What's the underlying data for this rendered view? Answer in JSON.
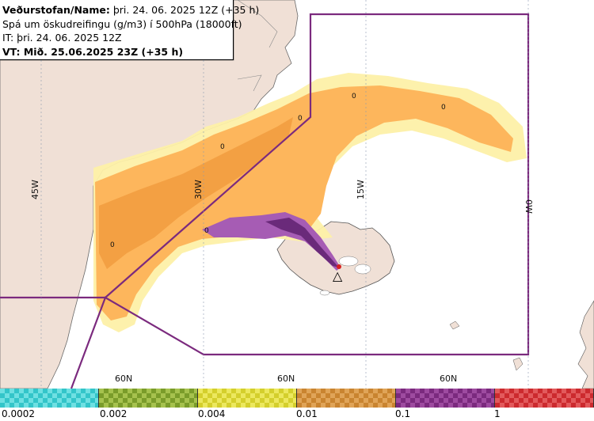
{
  "info": {
    "line1_bold": "Veðurstofan/Name:",
    "line1_rest": " þri. 24. 06. 2025 12Z (+35 h)",
    "line2": "Spá um öskudreifingu (g/m3) í 500hPa (18000ft)",
    "line3": "IT: þri. 24. 06. 2025 12Z",
    "line4": "VT: Mið. 25.06.2025 23Z (+35 h)"
  },
  "map": {
    "longitude_labels": [
      "45W",
      "30W",
      "15W",
      "0W"
    ],
    "latitude_labels": [
      "60N",
      "60N",
      "60N"
    ],
    "contour_labels": [
      "0",
      "0",
      "0",
      "0",
      "0",
      "0"
    ],
    "volcano_marker": "△"
  },
  "legend": {
    "colors": [
      "#33c5c9",
      "#7a9c2a",
      "#d4cf2c",
      "#c98430",
      "#7b2a7e",
      "#cc2a2e"
    ],
    "labels": [
      "0.0002",
      "0.002",
      "0.004",
      "0.01",
      "0.1",
      "1"
    ]
  }
}
